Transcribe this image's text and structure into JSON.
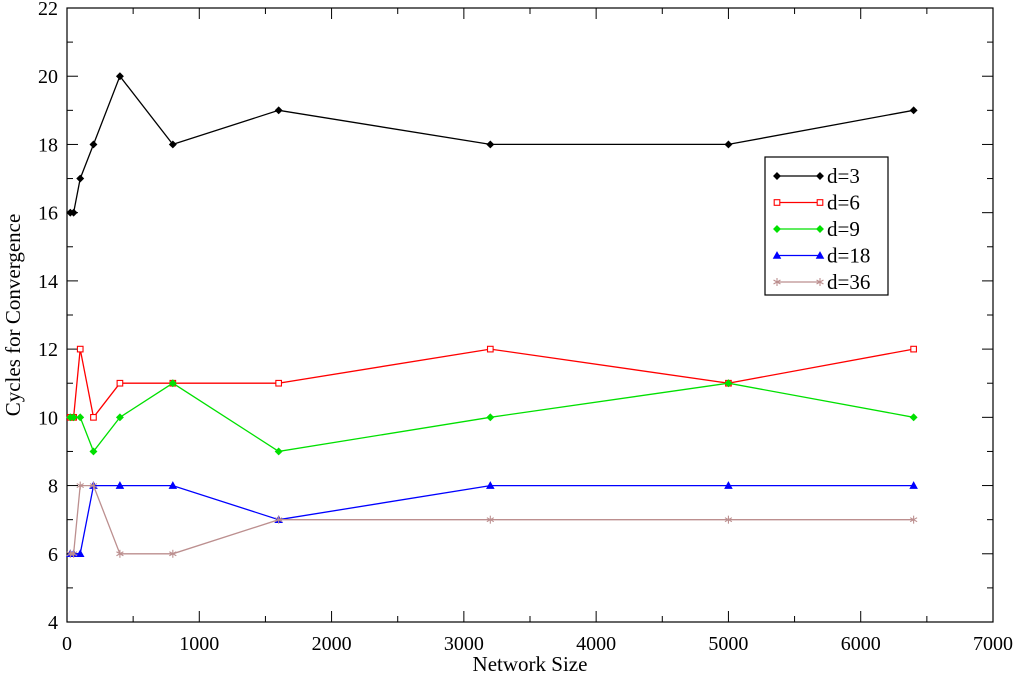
{
  "chart_data": {
    "type": "line",
    "title": "",
    "xlabel": "Network Size",
    "ylabel": "Cycles for Convergence",
    "xlim": [
      0,
      7000
    ],
    "ylim": [
      4,
      22
    ],
    "x_ticks": [
      0,
      1000,
      2000,
      3000,
      4000,
      5000,
      6000,
      7000
    ],
    "y_ticks": [
      4,
      6,
      8,
      10,
      12,
      14,
      16,
      18,
      20,
      22
    ],
    "x_tick_labels": [
      "0",
      "1000",
      "2000",
      "3000",
      "4000",
      "5000",
      "6000",
      "7000"
    ],
    "y_tick_labels": [
      "4",
      "6",
      "8",
      "10",
      "12",
      "14",
      "16",
      "18",
      "20",
      "22"
    ],
    "grid": false,
    "legend_position": "right",
    "x": [
      25,
      50,
      100,
      200,
      400,
      800,
      1600,
      3200,
      5000,
      6400
    ],
    "series": [
      {
        "name": "d=3",
        "color": "#000000",
        "marker": "diamond",
        "values": [
          16,
          16,
          17,
          18,
          20,
          18,
          19,
          18,
          18,
          19
        ]
      },
      {
        "name": "d=6",
        "color": "#ff0000",
        "marker": "square",
        "values": [
          10,
          10,
          12,
          10,
          11,
          11,
          11,
          12,
          11,
          12
        ]
      },
      {
        "name": "d=9",
        "color": "#00e000",
        "marker": "diamond",
        "values": [
          10,
          10,
          10,
          9,
          10,
          11,
          9,
          10,
          11,
          10
        ]
      },
      {
        "name": "d=18",
        "color": "#0000ff",
        "marker": "triangle",
        "values": [
          6,
          6,
          6,
          8,
          8,
          8,
          7,
          8,
          8,
          8
        ]
      },
      {
        "name": "d=36",
        "color": "#bc8f8f",
        "marker": "star",
        "values": [
          6,
          6,
          8,
          8,
          6,
          6,
          7,
          7,
          7,
          7
        ]
      }
    ]
  }
}
